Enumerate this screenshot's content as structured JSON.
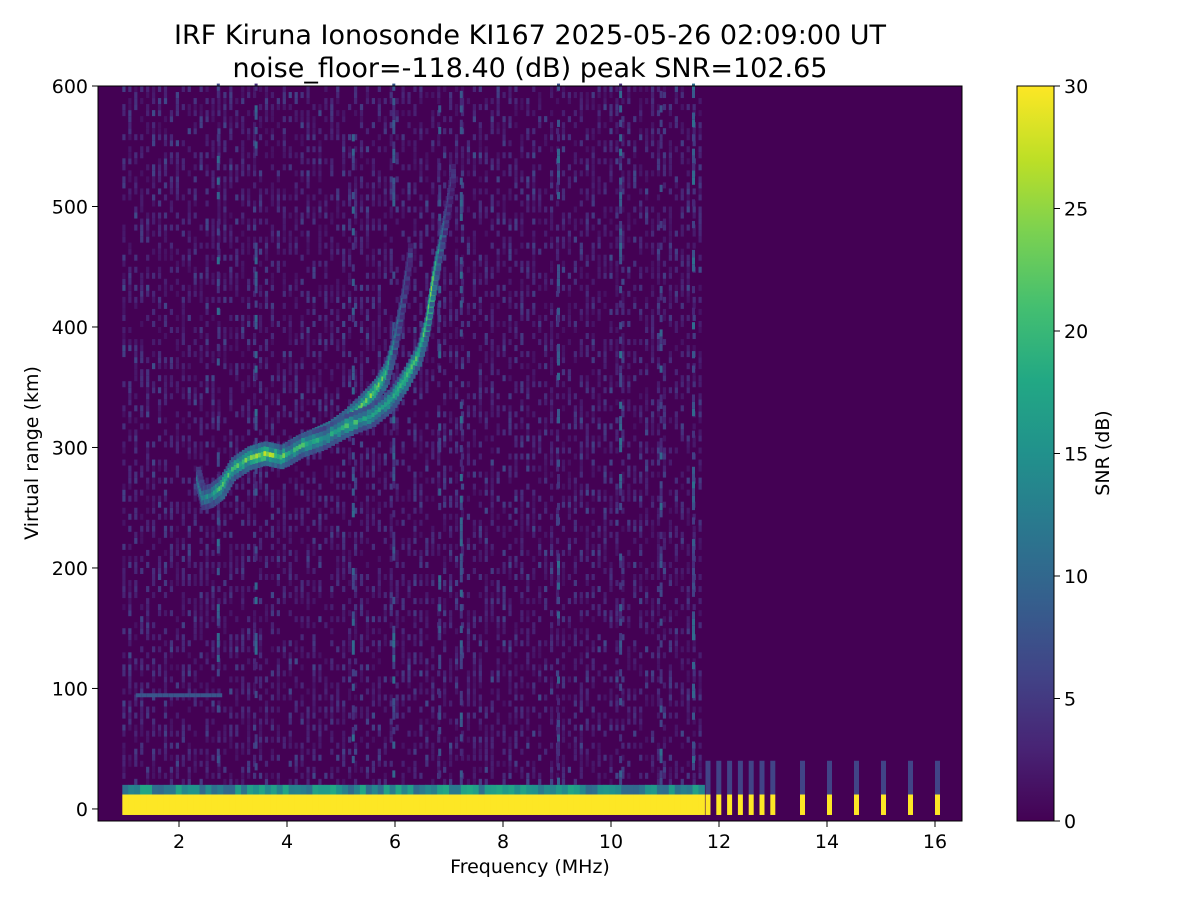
{
  "chart_data": {
    "type": "heatmap",
    "title_line1": "IRF Kiruna Ionosonde KI167 2025-05-26 02:09:00  UT",
    "title_line2": "noise_floor=-118.40 (dB) peak SNR=102.65",
    "xlabel": "Frequency (MHz)",
    "ylabel": "Virtual range (km)",
    "xlim": [
      0.5,
      16.5
    ],
    "ylim": [
      -10,
      600
    ],
    "xticks": [
      2,
      4,
      6,
      8,
      10,
      12,
      14,
      16
    ],
    "yticks": [
      0,
      100,
      200,
      300,
      400,
      500,
      600
    ],
    "colorbar": {
      "label": "SNR (dB)",
      "colormap": "viridis",
      "range": [
        0,
        30
      ],
      "ticks": [
        0,
        5,
        10,
        15,
        20,
        25,
        30
      ]
    },
    "data_coverage": {
      "freq_start_mhz": 0.95,
      "freq_end_mhz": 16.5,
      "dense_sweep_end_mhz": 11.7
    },
    "ground_echo_band": {
      "range_km": [
        -5,
        12
      ],
      "snr_db": 30
    },
    "sparse_channels_mhz": [
      11.75,
      11.95,
      12.15,
      12.35,
      12.55,
      12.75,
      12.95,
      13.5,
      14.0,
      14.5,
      15.0,
      15.5,
      16.0
    ],
    "f_trace_o": [
      {
        "f": 2.35,
        "r": 272,
        "snr": 12
      },
      {
        "f": 2.45,
        "r": 256,
        "snr": 14
      },
      {
        "f": 2.6,
        "r": 258,
        "snr": 15
      },
      {
        "f": 2.8,
        "r": 265,
        "snr": 22
      },
      {
        "f": 3.0,
        "r": 280,
        "snr": 20
      },
      {
        "f": 3.3,
        "r": 289,
        "snr": 23
      },
      {
        "f": 3.6,
        "r": 293,
        "snr": 26
      },
      {
        "f": 3.9,
        "r": 290,
        "snr": 22
      },
      {
        "f": 4.2,
        "r": 298,
        "snr": 26
      },
      {
        "f": 4.5,
        "r": 304,
        "snr": 24
      },
      {
        "f": 4.8,
        "r": 310,
        "snr": 25
      },
      {
        "f": 5.1,
        "r": 320,
        "snr": 21
      },
      {
        "f": 5.4,
        "r": 333,
        "snr": 22
      },
      {
        "f": 5.65,
        "r": 345,
        "snr": 25
      },
      {
        "f": 5.85,
        "r": 360,
        "snr": 22
      },
      {
        "f": 6.0,
        "r": 385,
        "snr": 14
      },
      {
        "f": 6.15,
        "r": 420,
        "snr": 9
      },
      {
        "f": 6.3,
        "r": 465,
        "snr": 6
      }
    ],
    "f_trace_x": [
      {
        "f": 4.0,
        "r": 292,
        "snr": 18
      },
      {
        "f": 4.3,
        "r": 300,
        "snr": 20
      },
      {
        "f": 4.7,
        "r": 306,
        "snr": 17
      },
      {
        "f": 5.1,
        "r": 316,
        "snr": 20
      },
      {
        "f": 5.6,
        "r": 325,
        "snr": 18
      },
      {
        "f": 5.95,
        "r": 338,
        "snr": 20
      },
      {
        "f": 6.2,
        "r": 355,
        "snr": 24
      },
      {
        "f": 6.45,
        "r": 375,
        "snr": 21
      },
      {
        "f": 6.6,
        "r": 400,
        "snr": 22
      },
      {
        "f": 6.7,
        "r": 430,
        "snr": 28
      },
      {
        "f": 6.8,
        "r": 455,
        "snr": 18
      },
      {
        "f": 6.95,
        "r": 490,
        "snr": 8
      },
      {
        "f": 7.1,
        "r": 530,
        "snr": 5
      }
    ],
    "e_layer_trace": {
      "range_km": 94,
      "freq_mhz": [
        1.2,
        2.75
      ],
      "snr_db": 8
    },
    "interference_lines_mhz": [
      2.7,
      3.4,
      5.2,
      5.95,
      6.8,
      7.2,
      9.0,
      10.15,
      10.9,
      11.5
    ]
  }
}
